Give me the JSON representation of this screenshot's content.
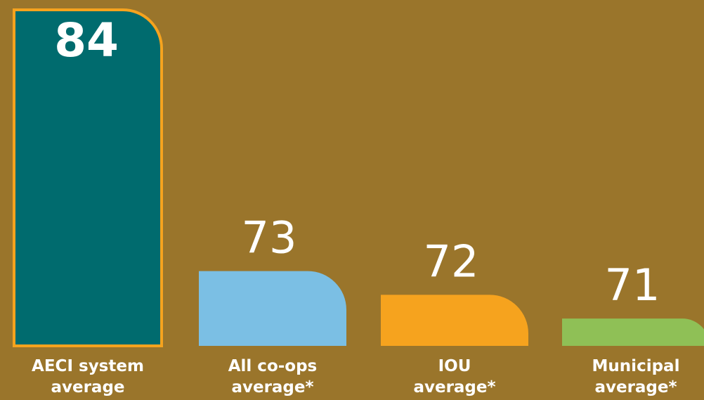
{
  "chart_data": {
    "type": "bar",
    "categories": [
      "AECI system\naverage",
      "All co-ops\naverage*",
      "IOU\naverage*",
      "Municipal\naverage*"
    ],
    "values": [
      84,
      73,
      72,
      71
    ],
    "colors": [
      "#006b6e",
      "#7bbfe4",
      "#f6a31e",
      "#8fc056"
    ],
    "edgecolors": [
      "#f6a31e",
      null,
      null,
      null
    ],
    "background": "#9a752b",
    "ylim": [
      69.85,
      84
    ]
  }
}
